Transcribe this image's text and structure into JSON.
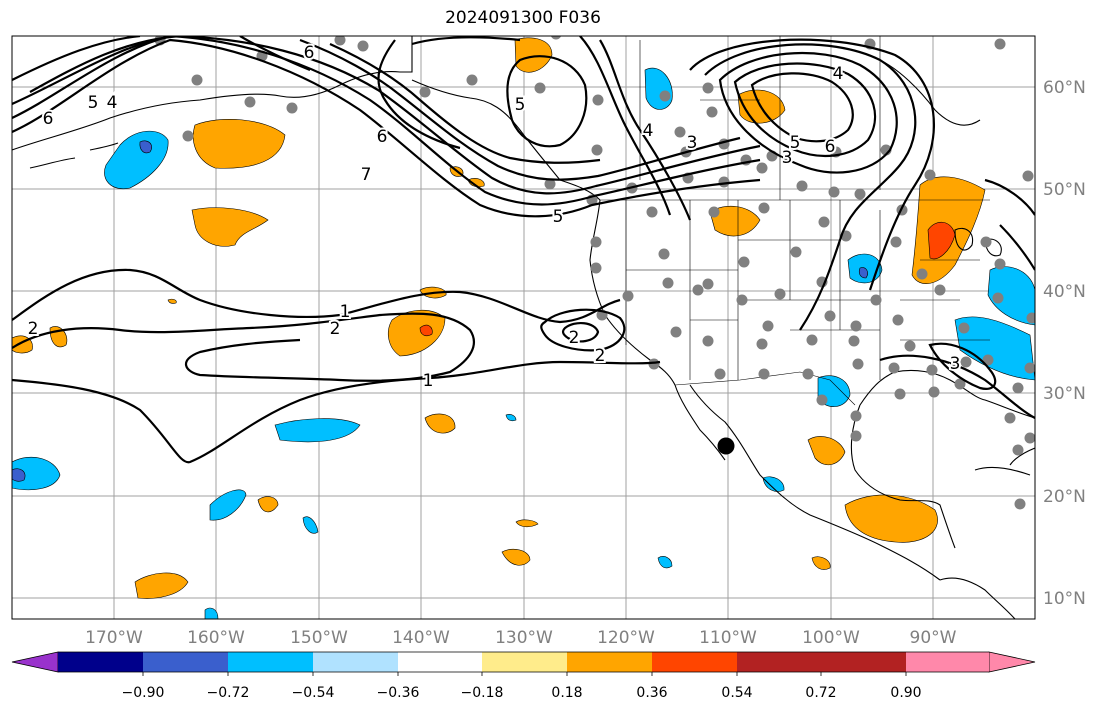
{
  "title": "2024091300 F036",
  "longitude_ticks": [
    "170°W",
    "160°W",
    "150°W",
    "140°W",
    "130°W",
    "120°W",
    "110°W",
    "100°W",
    "90°W"
  ],
  "latitude_ticks": [
    "60°N",
    "50°N",
    "40°N",
    "30°N",
    "20°N",
    "10°N"
  ],
  "contour_labels": [
    "6",
    "5",
    "4",
    "6",
    "5",
    "6",
    "7",
    "5",
    "5",
    "4",
    "3",
    "3",
    "4",
    "5",
    "6",
    "1",
    "2",
    "2",
    "1",
    "2",
    "2",
    "3"
  ],
  "colorbar": {
    "tick_labels": [
      "−0.90",
      "−0.72",
      "−0.54",
      "−0.36",
      "−0.18",
      "0.18",
      "0.36",
      "0.54",
      "0.72",
      "0.90"
    ],
    "colors": [
      "#9932cc",
      "#00008b",
      "#3a5fcd",
      "#00bfff",
      "#b0e2ff",
      "#ffffff",
      "#ffec8b",
      "#ffa500",
      "#ff4500",
      "#b22222",
      "#ff88aa"
    ]
  },
  "colors": {
    "positive": "#ffa500",
    "positive_strong": "#ff4500",
    "negative": "#00bfff",
    "negative_strong": "#3a5fcd",
    "contour": "#000000",
    "station": "#808080",
    "grid": "#a0a0a0",
    "coast": "#000000"
  }
}
